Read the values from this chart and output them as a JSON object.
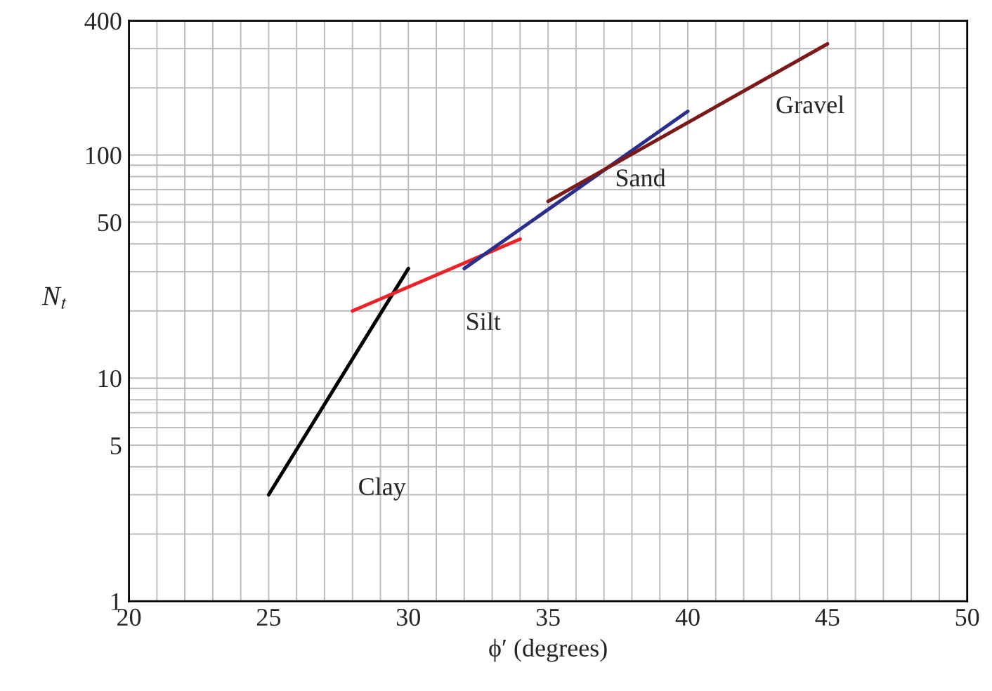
{
  "chart_data": {
    "type": "line",
    "xlabel": "ϕ′ (degrees)",
    "ylabel": "N$_{t}$",
    "log": "y",
    "grid": true,
    "legend": false,
    "marker": "none",
    "line_style": "solid",
    "xlim": [
      20,
      50
    ],
    "ylim": [
      1,
      400
    ],
    "xticks": [
      20,
      {
        "value": 21,
        "label": null
      },
      {
        "value": 22,
        "label": null
      },
      {
        "value": 23,
        "label": null
      },
      {
        "value": 24,
        "label": null
      },
      25,
      {
        "value": 26,
        "label": null
      },
      {
        "value": 27,
        "label": null
      },
      {
        "value": 28,
        "label": null
      },
      {
        "value": 29,
        "label": null
      },
      30,
      {
        "value": 31,
        "label": null
      },
      {
        "value": 32,
        "label": null
      },
      {
        "value": 33,
        "label": null
      },
      {
        "value": 34,
        "label": null
      },
      35,
      {
        "value": 36,
        "label": null
      },
      {
        "value": 37,
        "label": null
      },
      {
        "value": 38,
        "label": null
      },
      {
        "value": 39,
        "label": null
      },
      40,
      {
        "value": 41,
        "label": null
      },
      {
        "value": 42,
        "label": null
      },
      {
        "value": 43,
        "label": null
      },
      {
        "value": 44,
        "label": null
      },
      45,
      {
        "value": 46,
        "label": null
      },
      {
        "value": 47,
        "label": null
      },
      {
        "value": 48,
        "label": null
      },
      {
        "value": 49,
        "label": null
      },
      50
    ],
    "yticks": [
      1,
      {
        "value": 2,
        "label": null
      },
      {
        "value": 3,
        "label": null
      },
      {
        "value": 4,
        "label": null
      },
      5,
      {
        "value": 6,
        "label": null
      },
      {
        "value": 7,
        "label": null
      },
      {
        "value": 8,
        "label": null
      },
      {
        "value": 9,
        "label": null
      },
      10,
      {
        "value": 20,
        "label": null
      },
      {
        "value": 30,
        "label": null
      },
      {
        "value": 40,
        "label": null
      },
      50,
      {
        "value": 60,
        "label": null
      },
      {
        "value": 70,
        "label": null
      },
      {
        "value": 80,
        "label": null
      },
      {
        "value": 90,
        "label": null
      },
      100,
      {
        "value": 200,
        "label": null
      },
      {
        "value": 300,
        "label": null
      },
      400
    ],
    "series": [
      {
        "name": "Clay",
        "color": "#000000",
        "x": [
          25,
          30
        ],
        "values": [
          3,
          31
        ]
      },
      {
        "name": "Silt",
        "color": "#e8232a",
        "x": [
          28,
          34
        ],
        "values": [
          20,
          42
        ]
      },
      {
        "name": "Sand",
        "color": "#2b2f8a",
        "x": [
          32,
          40
        ],
        "values": [
          31,
          157
        ]
      },
      {
        "name": "Gravel",
        "color": "#7a1a1a",
        "x": [
          35,
          45
        ],
        "values": [
          62,
          315
        ]
      }
    ]
  }
}
